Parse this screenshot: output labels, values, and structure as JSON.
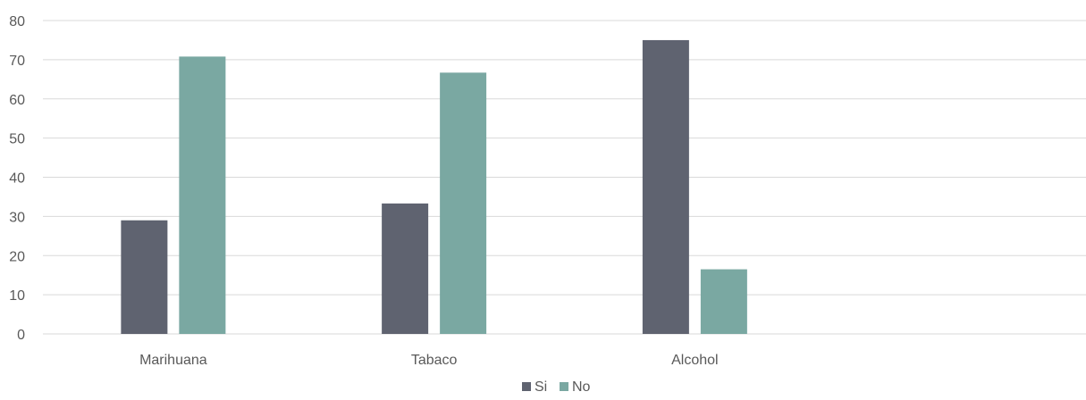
{
  "chart_data": {
    "type": "bar",
    "categories": [
      "Marihuana",
      "Tabaco",
      "Alcohol",
      ""
    ],
    "series": [
      {
        "name": "Si",
        "values": [
          29,
          33.3,
          75,
          null
        ],
        "color": "#5f6370"
      },
      {
        "name": "No",
        "values": [
          70.8,
          66.7,
          16.5,
          null
        ],
        "color": "#7aa8a2"
      }
    ],
    "title": "",
    "xlabel": "",
    "ylabel": "",
    "ylim": [
      0,
      80
    ],
    "yticks": [
      "0",
      "10",
      "20",
      "30",
      "40",
      "50",
      "60",
      "70",
      "80"
    ],
    "grid": true,
    "legend_position": "bottom-center",
    "gridline_color": "#d9d9d9",
    "axis_color": "#d9d9d9",
    "text_color": "#595959"
  }
}
